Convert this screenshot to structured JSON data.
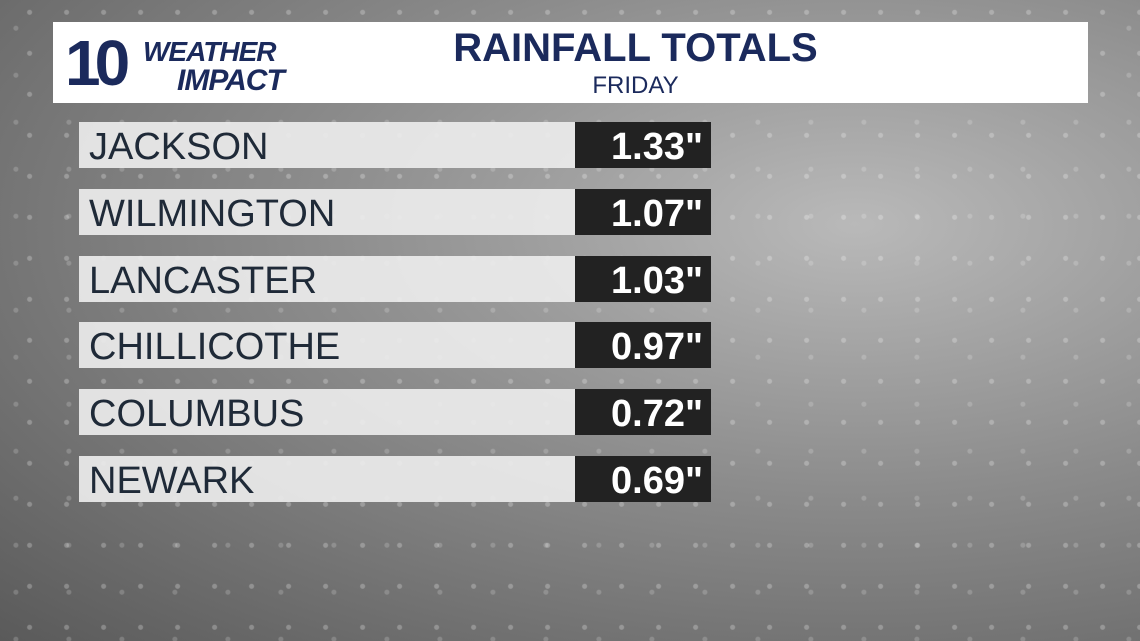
{
  "header": {
    "logo": {
      "number": "10",
      "line1": "WEATHER",
      "line2": "IMPACT"
    },
    "title": "RAINFALL TOTALS",
    "subtitle": "FRIDAY"
  },
  "table": {
    "rows": [
      [
        "JACKSON",
        "1.33\""
      ],
      [
        "WILMINGTON",
        "1.07\""
      ],
      [
        "LANCASTER",
        "1.03\""
      ],
      [
        "CHILLICOTHE",
        "0.97\""
      ],
      [
        "COLUMBUS",
        "0.72\""
      ],
      [
        "NEWARK",
        "0.69\""
      ]
    ]
  }
}
